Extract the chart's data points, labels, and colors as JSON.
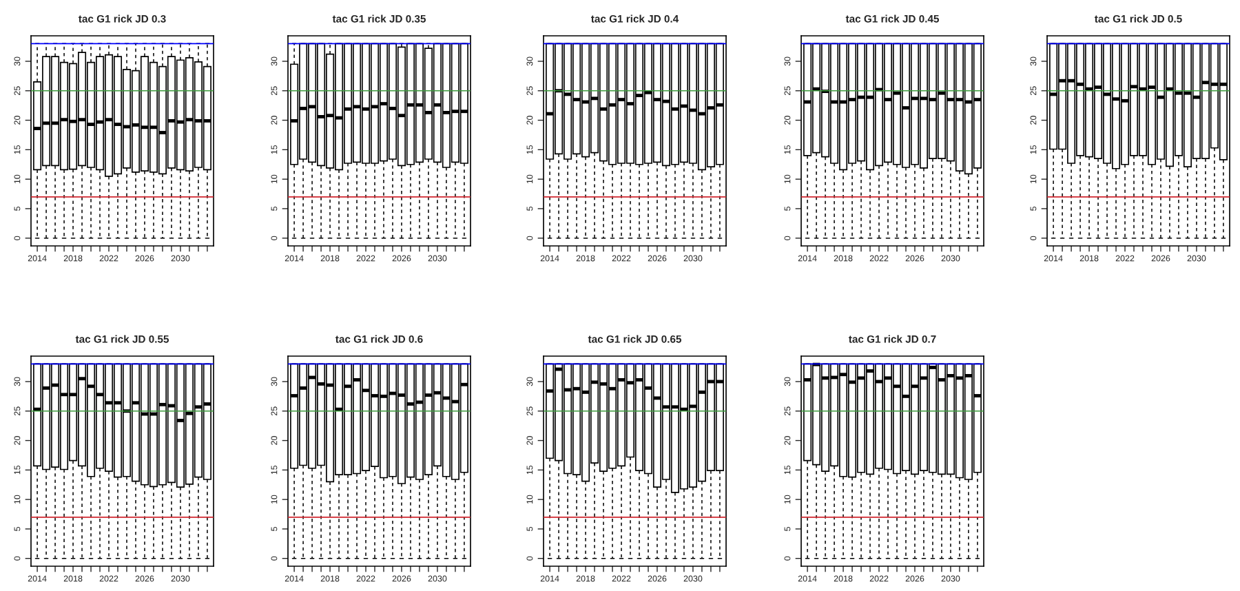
{
  "chart_data": [
    {
      "type": "box",
      "title": "tac G1 rick JD 0.3",
      "categories": [
        "2014",
        null,
        null,
        null,
        "2018",
        null,
        null,
        null,
        "2022",
        null,
        null,
        null,
        "2026",
        null,
        null,
        null,
        "2030",
        null,
        null,
        null
      ],
      "ylim": [
        -1.32,
        34.32
      ],
      "yticks": [
        0,
        5,
        10,
        15,
        20,
        25,
        30
      ],
      "grid": false,
      "ref_lines": [
        {
          "axis": "y",
          "value": 33,
          "color": "#0000ff"
        },
        {
          "axis": "y",
          "value": 25,
          "color": "#3c9a3c"
        },
        {
          "axis": "y",
          "value": 7,
          "color": "#d0262e"
        }
      ],
      "boxes": [
        {
          "low": 0,
          "q1": 11.6,
          "median": 18.6,
          "q3": 26.5,
          "high": 33
        },
        {
          "low": 0,
          "q1": 12.3,
          "median": 19.5,
          "q3": 30.8,
          "high": 33
        },
        {
          "low": 0,
          "q1": 12.3,
          "median": 19.5,
          "q3": 30.8,
          "high": 33
        },
        {
          "low": 0,
          "q1": 11.6,
          "median": 20.1,
          "q3": 29.8,
          "high": 33
        },
        {
          "low": 0,
          "q1": 11.7,
          "median": 19.8,
          "q3": 29.6,
          "high": 33
        },
        {
          "low": 0,
          "q1": 12.3,
          "median": 20.1,
          "q3": 31.5,
          "high": 33
        },
        {
          "low": 0,
          "q1": 12.0,
          "median": 19.3,
          "q3": 29.8,
          "high": 33
        },
        {
          "low": 0,
          "q1": 11.6,
          "median": 19.7,
          "q3": 30.8,
          "high": 33
        },
        {
          "low": 0,
          "q1": 10.5,
          "median": 20.1,
          "q3": 31.1,
          "high": 33
        },
        {
          "low": 0,
          "q1": 10.9,
          "median": 19.3,
          "q3": 30.8,
          "high": 33
        },
        {
          "low": 0,
          "q1": 11.9,
          "median": 18.9,
          "q3": 28.6,
          "high": 33
        },
        {
          "low": 0,
          "q1": 11.2,
          "median": 19.2,
          "q3": 28.4,
          "high": 33
        },
        {
          "low": 0,
          "q1": 11.4,
          "median": 18.8,
          "q3": 30.8,
          "high": 33
        },
        {
          "low": 0,
          "q1": 11.2,
          "median": 18.8,
          "q3": 29.8,
          "high": 33
        },
        {
          "low": 0,
          "q1": 10.9,
          "median": 17.9,
          "q3": 29.1,
          "high": 33
        },
        {
          "low": 0,
          "q1": 11.9,
          "median": 19.9,
          "q3": 30.8,
          "high": 33
        },
        {
          "low": 0,
          "q1": 11.6,
          "median": 19.7,
          "q3": 30.2,
          "high": 33
        },
        {
          "low": 0,
          "q1": 11.4,
          "median": 20.1,
          "q3": 30.6,
          "high": 33
        },
        {
          "low": 0,
          "q1": 12.0,
          "median": 19.9,
          "q3": 29.9,
          "high": 33
        },
        {
          "low": 0,
          "q1": 11.6,
          "median": 19.9,
          "q3": 29.1,
          "high": 33
        }
      ]
    },
    {
      "type": "box",
      "title": "tac G1 rick JD 0.35",
      "categories": [
        "2014",
        null,
        null,
        null,
        "2018",
        null,
        null,
        null,
        "2022",
        null,
        null,
        null,
        "2026",
        null,
        null,
        null,
        "2030",
        null,
        null,
        null
      ],
      "ylim": [
        -1.32,
        34.32
      ],
      "yticks": [
        0,
        5,
        10,
        15,
        20,
        25,
        30
      ],
      "grid": false,
      "ref_lines": [
        {
          "axis": "y",
          "value": 33,
          "color": "#0000ff"
        },
        {
          "axis": "y",
          "value": 25,
          "color": "#3c9a3c"
        },
        {
          "axis": "y",
          "value": 7,
          "color": "#d0262e"
        }
      ],
      "boxes": [
        {
          "low": 0,
          "q1": 12.5,
          "median": 19.9,
          "q3": 29.5,
          "high": 33
        },
        {
          "low": 0,
          "q1": 13.4,
          "median": 22.0,
          "q3": 33,
          "high": 33
        },
        {
          "low": 0,
          "q1": 12.9,
          "median": 22.3,
          "q3": 33,
          "high": 33
        },
        {
          "low": 0,
          "q1": 12.3,
          "median": 20.6,
          "q3": 33,
          "high": 33
        },
        {
          "low": 0,
          "q1": 11.9,
          "median": 20.8,
          "q3": 31.2,
          "high": 33
        },
        {
          "low": 0,
          "q1": 11.6,
          "median": 20.4,
          "q3": 33,
          "high": 33
        },
        {
          "low": 0,
          "q1": 12.7,
          "median": 21.9,
          "q3": 33,
          "high": 33
        },
        {
          "low": 0,
          "q1": 12.9,
          "median": 22.3,
          "q3": 33,
          "high": 33
        },
        {
          "low": 0,
          "q1": 12.7,
          "median": 21.9,
          "q3": 33,
          "high": 33
        },
        {
          "low": 0,
          "q1": 12.7,
          "median": 22.3,
          "q3": 33,
          "high": 33
        },
        {
          "low": 0,
          "q1": 13.1,
          "median": 22.8,
          "q3": 33,
          "high": 33
        },
        {
          "low": 0,
          "q1": 13.4,
          "median": 22.0,
          "q3": 33,
          "high": 33
        },
        {
          "low": 0,
          "q1": 12.3,
          "median": 20.8,
          "q3": 32.4,
          "high": 33
        },
        {
          "low": 0,
          "q1": 12.5,
          "median": 22.6,
          "q3": 33,
          "high": 33
        },
        {
          "low": 0,
          "q1": 12.9,
          "median": 22.6,
          "q3": 33,
          "high": 33
        },
        {
          "low": 0,
          "q1": 13.4,
          "median": 21.3,
          "q3": 32.2,
          "high": 33
        },
        {
          "low": 0,
          "q1": 12.9,
          "median": 22.6,
          "q3": 33,
          "high": 33
        },
        {
          "low": 0,
          "q1": 12.0,
          "median": 21.3,
          "q3": 33,
          "high": 33
        },
        {
          "low": 0,
          "q1": 12.9,
          "median": 21.5,
          "q3": 33,
          "high": 33
        },
        {
          "low": 0,
          "q1": 12.7,
          "median": 21.5,
          "q3": 33,
          "high": 33
        }
      ]
    },
    {
      "type": "box",
      "title": "tac G1 rick JD 0.4",
      "categories": [
        "2014",
        null,
        null,
        null,
        "2018",
        null,
        null,
        null,
        "2022",
        null,
        null,
        null,
        "2026",
        null,
        null,
        null,
        "2030",
        null,
        null,
        null
      ],
      "ylim": [
        -1.32,
        34.32
      ],
      "yticks": [
        0,
        5,
        10,
        15,
        20,
        25,
        30
      ],
      "grid": false,
      "ref_lines": [
        {
          "axis": "y",
          "value": 33,
          "color": "#0000ff"
        },
        {
          "axis": "y",
          "value": 25,
          "color": "#3c9a3c"
        },
        {
          "axis": "y",
          "value": 7,
          "color": "#d0262e"
        }
      ],
      "boxes": [
        {
          "low": 0,
          "q1": 13.4,
          "median": 21.1,
          "q3": 33,
          "high": 33
        },
        {
          "low": 0,
          "q1": 14.3,
          "median": 25.0,
          "q3": 33,
          "high": 33
        },
        {
          "low": 0,
          "q1": 13.4,
          "median": 24.4,
          "q3": 33,
          "high": 33
        },
        {
          "low": 0,
          "q1": 14.3,
          "median": 23.5,
          "q3": 33,
          "high": 33
        },
        {
          "low": 0,
          "q1": 13.8,
          "median": 23.1,
          "q3": 33,
          "high": 33
        },
        {
          "low": 0,
          "q1": 14.5,
          "median": 23.7,
          "q3": 33,
          "high": 33
        },
        {
          "low": 0,
          "q1": 13.1,
          "median": 21.9,
          "q3": 33,
          "high": 33
        },
        {
          "low": 0,
          "q1": 12.5,
          "median": 22.6,
          "q3": 33,
          "high": 33
        },
        {
          "low": 0,
          "q1": 12.7,
          "median": 23.5,
          "q3": 33,
          "high": 33
        },
        {
          "low": 0,
          "q1": 12.7,
          "median": 22.8,
          "q3": 33,
          "high": 33
        },
        {
          "low": 0,
          "q1": 12.5,
          "median": 24.2,
          "q3": 33,
          "high": 33
        },
        {
          "low": 0,
          "q1": 12.7,
          "median": 24.7,
          "q3": 33,
          "high": 33
        },
        {
          "low": 0,
          "q1": 12.9,
          "median": 23.5,
          "q3": 33,
          "high": 33
        },
        {
          "low": 0,
          "q1": 12.3,
          "median": 23.2,
          "q3": 33,
          "high": 33
        },
        {
          "low": 0,
          "q1": 12.5,
          "median": 21.9,
          "q3": 33,
          "high": 33
        },
        {
          "low": 0,
          "q1": 12.9,
          "median": 22.4,
          "q3": 33,
          "high": 33
        },
        {
          "low": 0,
          "q1": 12.7,
          "median": 21.7,
          "q3": 33,
          "high": 33
        },
        {
          "low": 0,
          "q1": 11.6,
          "median": 21.1,
          "q3": 33,
          "high": 33
        },
        {
          "low": 0,
          "q1": 12.1,
          "median": 22.1,
          "q3": 33,
          "high": 33
        },
        {
          "low": 0,
          "q1": 12.5,
          "median": 22.6,
          "q3": 33,
          "high": 33
        }
      ]
    },
    {
      "type": "box",
      "title": "tac G1 rick JD 0.45",
      "categories": [
        "2014",
        null,
        null,
        null,
        "2018",
        null,
        null,
        null,
        "2022",
        null,
        null,
        null,
        "2026",
        null,
        null,
        null,
        "2030",
        null,
        null,
        null
      ],
      "ylim": [
        -1.32,
        34.32
      ],
      "yticks": [
        0,
        5,
        10,
        15,
        20,
        25,
        30
      ],
      "grid": false,
      "ref_lines": [
        {
          "axis": "y",
          "value": 33,
          "color": "#0000ff"
        },
        {
          "axis": "y",
          "value": 25,
          "color": "#3c9a3c"
        },
        {
          "axis": "y",
          "value": 7,
          "color": "#d0262e"
        }
      ],
      "boxes": [
        {
          "low": 0,
          "q1": 14.0,
          "median": 23.1,
          "q3": 33,
          "high": 33
        },
        {
          "low": 0,
          "q1": 14.5,
          "median": 25.3,
          "q3": 33,
          "high": 33
        },
        {
          "low": 0,
          "q1": 13.8,
          "median": 24.9,
          "q3": 33,
          "high": 33
        },
        {
          "low": 0,
          "q1": 12.7,
          "median": 23.1,
          "q3": 33,
          "high": 33
        },
        {
          "low": 0,
          "q1": 11.6,
          "median": 23.1,
          "q3": 33,
          "high": 33
        },
        {
          "low": 0,
          "q1": 12.7,
          "median": 23.5,
          "q3": 33,
          "high": 33
        },
        {
          "low": 0,
          "q1": 13.1,
          "median": 23.9,
          "q3": 33,
          "high": 33
        },
        {
          "low": 0,
          "q1": 11.6,
          "median": 23.9,
          "q3": 33,
          "high": 33
        },
        {
          "low": 0,
          "q1": 12.3,
          "median": 25.2,
          "q3": 33,
          "high": 33
        },
        {
          "low": 0,
          "q1": 12.9,
          "median": 23.5,
          "q3": 33,
          "high": 33
        },
        {
          "low": 0,
          "q1": 12.5,
          "median": 24.6,
          "q3": 33,
          "high": 33
        },
        {
          "low": 0,
          "q1": 12.0,
          "median": 22.1,
          "q3": 33,
          "high": 33
        },
        {
          "low": 0,
          "q1": 12.5,
          "median": 23.7,
          "q3": 33,
          "high": 33
        },
        {
          "low": 0,
          "q1": 11.9,
          "median": 23.7,
          "q3": 33,
          "high": 33
        },
        {
          "low": 0,
          "q1": 13.5,
          "median": 23.5,
          "q3": 33,
          "high": 33
        },
        {
          "low": 0,
          "q1": 13.5,
          "median": 24.6,
          "q3": 33,
          "high": 33
        },
        {
          "low": 0,
          "q1": 13.1,
          "median": 23.5,
          "q3": 33,
          "high": 33
        },
        {
          "low": 0,
          "q1": 11.4,
          "median": 23.5,
          "q3": 33,
          "high": 33
        },
        {
          "low": 0,
          "q1": 10.9,
          "median": 23.1,
          "q3": 33,
          "high": 33
        },
        {
          "low": 0,
          "q1": 11.9,
          "median": 23.5,
          "q3": 33,
          "high": 33
        }
      ]
    },
    {
      "type": "box",
      "title": "tac G1 rick JD 0.5",
      "categories": [
        "2014",
        null,
        null,
        null,
        "2018",
        null,
        null,
        null,
        "2022",
        null,
        null,
        null,
        "2026",
        null,
        null,
        null,
        "2030",
        null,
        null,
        null
      ],
      "ylim": [
        -1.32,
        34.32
      ],
      "yticks": [
        0,
        5,
        10,
        15,
        20,
        25,
        30
      ],
      "grid": false,
      "ref_lines": [
        {
          "axis": "y",
          "value": 33,
          "color": "#0000ff"
        },
        {
          "axis": "y",
          "value": 25,
          "color": "#3c9a3c"
        },
        {
          "axis": "y",
          "value": 7,
          "color": "#d0262e"
        }
      ],
      "boxes": [
        {
          "low": 0,
          "q1": 15.1,
          "median": 24.4,
          "q3": 33,
          "high": 33
        },
        {
          "low": 0,
          "q1": 15.1,
          "median": 26.7,
          "q3": 33,
          "high": 33
        },
        {
          "low": 0,
          "q1": 12.7,
          "median": 26.7,
          "q3": 33,
          "high": 33
        },
        {
          "low": 0,
          "q1": 14.0,
          "median": 26.1,
          "q3": 33,
          "high": 33
        },
        {
          "low": 0,
          "q1": 13.8,
          "median": 25.3,
          "q3": 33,
          "high": 33
        },
        {
          "low": 0,
          "q1": 13.5,
          "median": 25.6,
          "q3": 33,
          "high": 33
        },
        {
          "low": 0,
          "q1": 12.7,
          "median": 24.4,
          "q3": 33,
          "high": 33
        },
        {
          "low": 0,
          "q1": 11.8,
          "median": 23.6,
          "q3": 33,
          "high": 33
        },
        {
          "low": 0,
          "q1": 12.5,
          "median": 23.3,
          "q3": 33,
          "high": 33
        },
        {
          "low": 0,
          "q1": 14.0,
          "median": 25.7,
          "q3": 33,
          "high": 33
        },
        {
          "low": 0,
          "q1": 14.0,
          "median": 25.3,
          "q3": 33,
          "high": 33
        },
        {
          "low": 0,
          "q1": 12.5,
          "median": 25.6,
          "q3": 33,
          "high": 33
        },
        {
          "low": 0,
          "q1": 13.4,
          "median": 23.9,
          "q3": 33,
          "high": 33
        },
        {
          "low": 0,
          "q1": 12.2,
          "median": 25.3,
          "q3": 33,
          "high": 33
        },
        {
          "low": 0,
          "q1": 14.0,
          "median": 24.6,
          "q3": 33,
          "high": 33
        },
        {
          "low": 0,
          "q1": 12.1,
          "median": 24.6,
          "q3": 33,
          "high": 33
        },
        {
          "low": 0,
          "q1": 13.5,
          "median": 23.9,
          "q3": 33,
          "high": 33
        },
        {
          "low": 0,
          "q1": 13.5,
          "median": 26.4,
          "q3": 33,
          "high": 33
        },
        {
          "low": 0,
          "q1": 15.3,
          "median": 26.1,
          "q3": 33,
          "high": 33
        },
        {
          "low": 0,
          "q1": 13.3,
          "median": 26.1,
          "q3": 33,
          "high": 33
        }
      ]
    },
    {
      "type": "box",
      "title": "tac G1 rick JD 0.55",
      "categories": [
        "2014",
        null,
        null,
        null,
        "2018",
        null,
        null,
        null,
        "2022",
        null,
        null,
        null,
        "2026",
        null,
        null,
        null,
        "2030",
        null,
        null,
        null
      ],
      "ylim": [
        -1.32,
        34.32
      ],
      "yticks": [
        0,
        5,
        10,
        15,
        20,
        25,
        30
      ],
      "grid": false,
      "ref_lines": [
        {
          "axis": "y",
          "value": 33,
          "color": "#0000ff"
        },
        {
          "axis": "y",
          "value": 25,
          "color": "#3c9a3c"
        },
        {
          "axis": "y",
          "value": 7,
          "color": "#d0262e"
        }
      ],
      "boxes": [
        {
          "low": 0,
          "q1": 15.7,
          "median": 25.3,
          "q3": 33,
          "high": 33
        },
        {
          "low": 0,
          "q1": 15.1,
          "median": 28.9,
          "q3": 33,
          "high": 33
        },
        {
          "low": 0,
          "q1": 15.5,
          "median": 29.4,
          "q3": 33,
          "high": 33
        },
        {
          "low": 0,
          "q1": 15.1,
          "median": 27.8,
          "q3": 33,
          "high": 33
        },
        {
          "low": 0,
          "q1": 16.6,
          "median": 27.8,
          "q3": 33,
          "high": 33
        },
        {
          "low": 0,
          "q1": 15.7,
          "median": 30.5,
          "q3": 33,
          "high": 33
        },
        {
          "low": 0,
          "q1": 13.9,
          "median": 29.2,
          "q3": 33,
          "high": 33
        },
        {
          "low": 0,
          "q1": 15.3,
          "median": 27.8,
          "q3": 33,
          "high": 33
        },
        {
          "low": 0,
          "q1": 14.8,
          "median": 26.4,
          "q3": 33,
          "high": 33
        },
        {
          "low": 0,
          "q1": 13.8,
          "median": 26.4,
          "q3": 33,
          "high": 33
        },
        {
          "low": 0,
          "q1": 13.9,
          "median": 25.0,
          "q3": 33,
          "high": 33
        },
        {
          "low": 0,
          "q1": 13.1,
          "median": 26.4,
          "q3": 33,
          "high": 33
        },
        {
          "low": 0,
          "q1": 12.5,
          "median": 24.5,
          "q3": 33,
          "high": 33
        },
        {
          "low": 0,
          "q1": 12.2,
          "median": 24.5,
          "q3": 33,
          "high": 33
        },
        {
          "low": 0,
          "q1": 12.5,
          "median": 26.1,
          "q3": 33,
          "high": 33
        },
        {
          "low": 0,
          "q1": 12.9,
          "median": 25.9,
          "q3": 33,
          "high": 33
        },
        {
          "low": 0,
          "q1": 12.1,
          "median": 23.4,
          "q3": 33,
          "high": 33
        },
        {
          "low": 0,
          "q1": 12.6,
          "median": 24.6,
          "q3": 33,
          "high": 33
        },
        {
          "low": 0,
          "q1": 13.8,
          "median": 25.7,
          "q3": 33,
          "high": 33
        },
        {
          "low": 0,
          "q1": 13.4,
          "median": 26.2,
          "q3": 33,
          "high": 33
        }
      ]
    },
    {
      "type": "box",
      "title": "tac G1 rick JD 0.6",
      "categories": [
        "2014",
        null,
        null,
        null,
        "2018",
        null,
        null,
        null,
        "2022",
        null,
        null,
        null,
        "2026",
        null,
        null,
        null,
        "2030",
        null,
        null,
        null
      ],
      "ylim": [
        -1.32,
        34.32
      ],
      "yticks": [
        0,
        5,
        10,
        15,
        20,
        25,
        30
      ],
      "grid": false,
      "ref_lines": [
        {
          "axis": "y",
          "value": 33,
          "color": "#0000ff"
        },
        {
          "axis": "y",
          "value": 25,
          "color": "#3c9a3c"
        },
        {
          "axis": "y",
          "value": 7,
          "color": "#d0262e"
        }
      ],
      "boxes": [
        {
          "low": 0,
          "q1": 15.3,
          "median": 27.6,
          "q3": 33,
          "high": 33
        },
        {
          "low": 0,
          "q1": 15.8,
          "median": 28.9,
          "q3": 33,
          "high": 33
        },
        {
          "low": 0,
          "q1": 15.3,
          "median": 30.7,
          "q3": 33,
          "high": 33
        },
        {
          "low": 0,
          "q1": 15.8,
          "median": 29.6,
          "q3": 33,
          "high": 33
        },
        {
          "low": 0,
          "q1": 13.0,
          "median": 29.4,
          "q3": 33,
          "high": 33
        },
        {
          "low": 0,
          "q1": 14.2,
          "median": 25.3,
          "q3": 33,
          "high": 33
        },
        {
          "low": 0,
          "q1": 14.2,
          "median": 29.2,
          "q3": 33,
          "high": 33
        },
        {
          "low": 0,
          "q1": 14.4,
          "median": 30.3,
          "q3": 33,
          "high": 33
        },
        {
          "low": 0,
          "q1": 14.9,
          "median": 28.5,
          "q3": 33,
          "high": 33
        },
        {
          "low": 0,
          "q1": 15.6,
          "median": 27.6,
          "q3": 33,
          "high": 33
        },
        {
          "low": 0,
          "q1": 13.7,
          "median": 27.5,
          "q3": 33,
          "high": 33
        },
        {
          "low": 0,
          "q1": 13.9,
          "median": 28.0,
          "q3": 33,
          "high": 33
        },
        {
          "low": 0,
          "q1": 12.7,
          "median": 27.7,
          "q3": 33,
          "high": 33
        },
        {
          "low": 0,
          "q1": 13.8,
          "median": 26.2,
          "q3": 33,
          "high": 33
        },
        {
          "low": 0,
          "q1": 13.4,
          "median": 26.5,
          "q3": 33,
          "high": 33
        },
        {
          "low": 0,
          "q1": 14.2,
          "median": 27.7,
          "q3": 33,
          "high": 33
        },
        {
          "low": 0,
          "q1": 15.7,
          "median": 28.1,
          "q3": 33,
          "high": 33
        },
        {
          "low": 0,
          "q1": 13.9,
          "median": 27.2,
          "q3": 33,
          "high": 33
        },
        {
          "low": 0,
          "q1": 13.4,
          "median": 26.6,
          "q3": 33,
          "high": 33
        },
        {
          "low": 0,
          "q1": 14.6,
          "median": 29.5,
          "q3": 33,
          "high": 33
        }
      ]
    },
    {
      "type": "box",
      "title": "tac G1 rick JD 0.65",
      "categories": [
        "2014",
        null,
        null,
        null,
        "2018",
        null,
        null,
        null,
        "2022",
        null,
        null,
        null,
        "2026",
        null,
        null,
        null,
        "2030",
        null,
        null,
        null
      ],
      "ylim": [
        -1.32,
        34.32
      ],
      "yticks": [
        0,
        5,
        10,
        15,
        20,
        25,
        30
      ],
      "grid": false,
      "ref_lines": [
        {
          "axis": "y",
          "value": 33,
          "color": "#0000ff"
        },
        {
          "axis": "y",
          "value": 25,
          "color": "#3c9a3c"
        },
        {
          "axis": "y",
          "value": 7,
          "color": "#d0262e"
        }
      ],
      "boxes": [
        {
          "low": 0,
          "q1": 17.0,
          "median": 28.4,
          "q3": 33,
          "high": 33
        },
        {
          "low": 0,
          "q1": 16.6,
          "median": 32.1,
          "q3": 33,
          "high": 33
        },
        {
          "low": 0,
          "q1": 14.4,
          "median": 28.6,
          "q3": 33,
          "high": 33
        },
        {
          "low": 0,
          "q1": 14.2,
          "median": 28.8,
          "q3": 33,
          "high": 33
        },
        {
          "low": 0,
          "q1": 13.1,
          "median": 28.2,
          "q3": 33,
          "high": 33
        },
        {
          "low": 0,
          "q1": 16.2,
          "median": 29.9,
          "q3": 33,
          "high": 33
        },
        {
          "low": 0,
          "q1": 14.8,
          "median": 29.6,
          "q3": 33,
          "high": 33
        },
        {
          "low": 0,
          "q1": 15.3,
          "median": 28.8,
          "q3": 33,
          "high": 33
        },
        {
          "low": 0,
          "q1": 15.7,
          "median": 30.3,
          "q3": 33,
          "high": 33
        },
        {
          "low": 0,
          "q1": 17.2,
          "median": 29.8,
          "q3": 33,
          "high": 33
        },
        {
          "low": 0,
          "q1": 14.9,
          "median": 30.3,
          "q3": 33,
          "high": 33
        },
        {
          "low": 0,
          "q1": 14.4,
          "median": 28.9,
          "q3": 33,
          "high": 33
        },
        {
          "low": 0,
          "q1": 12.1,
          "median": 27.2,
          "q3": 33,
          "high": 33
        },
        {
          "low": 0,
          "q1": 13.4,
          "median": 25.7,
          "q3": 33,
          "high": 33
        },
        {
          "low": 0,
          "q1": 11.2,
          "median": 25.7,
          "q3": 33,
          "high": 33
        },
        {
          "low": 0,
          "q1": 11.8,
          "median": 25.3,
          "q3": 33,
          "high": 33
        },
        {
          "low": 0,
          "q1": 12.1,
          "median": 25.8,
          "q3": 33,
          "high": 33
        },
        {
          "low": 0,
          "q1": 13.1,
          "median": 28.2,
          "q3": 33,
          "high": 33
        },
        {
          "low": 0,
          "q1": 14.9,
          "median": 30.0,
          "q3": 33,
          "high": 33
        },
        {
          "low": 0,
          "q1": 14.9,
          "median": 30.0,
          "q3": 33,
          "high": 33
        }
      ]
    },
    {
      "type": "box",
      "title": "tac G1 rick JD 0.7",
      "categories": [
        "2014",
        null,
        null,
        null,
        "2018",
        null,
        null,
        null,
        "2022",
        null,
        null,
        null,
        "2026",
        null,
        null,
        null,
        "2030",
        null,
        null,
        null
      ],
      "ylim": [
        -1.32,
        34.32
      ],
      "yticks": [
        0,
        5,
        10,
        15,
        20,
        25,
        30
      ],
      "grid": false,
      "ref_lines": [
        {
          "axis": "y",
          "value": 33,
          "color": "#0000ff"
        },
        {
          "axis": "y",
          "value": 25,
          "color": "#3c9a3c"
        },
        {
          "axis": "y",
          "value": 7,
          "color": "#d0262e"
        }
      ],
      "boxes": [
        {
          "low": 0,
          "q1": 16.6,
          "median": 30.3,
          "q3": 33,
          "high": 33
        },
        {
          "low": 0,
          "q1": 15.9,
          "median": 32.9,
          "q3": 33,
          "high": 33
        },
        {
          "low": 0,
          "q1": 14.8,
          "median": 30.6,
          "q3": 33,
          "high": 33
        },
        {
          "low": 0,
          "q1": 15.7,
          "median": 30.7,
          "q3": 33,
          "high": 33
        },
        {
          "low": 0,
          "q1": 13.9,
          "median": 31.2,
          "q3": 33,
          "high": 33
        },
        {
          "low": 0,
          "q1": 13.8,
          "median": 29.9,
          "q3": 33,
          "high": 33
        },
        {
          "low": 0,
          "q1": 14.6,
          "median": 30.6,
          "q3": 33,
          "high": 33
        },
        {
          "low": 0,
          "q1": 14.3,
          "median": 31.8,
          "q3": 33,
          "high": 33
        },
        {
          "low": 0,
          "q1": 15.3,
          "median": 30.0,
          "q3": 33,
          "high": 33
        },
        {
          "low": 0,
          "q1": 15.1,
          "median": 30.6,
          "q3": 33,
          "high": 33
        },
        {
          "low": 0,
          "q1": 14.4,
          "median": 29.2,
          "q3": 33,
          "high": 33
        },
        {
          "low": 0,
          "q1": 14.9,
          "median": 27.5,
          "q3": 33,
          "high": 33
        },
        {
          "low": 0,
          "q1": 14.3,
          "median": 29.2,
          "q3": 33,
          "high": 33
        },
        {
          "low": 0,
          "q1": 14.9,
          "median": 30.6,
          "q3": 33,
          "high": 33
        },
        {
          "low": 0,
          "q1": 14.6,
          "median": 32.4,
          "q3": 33,
          "high": 33
        },
        {
          "low": 0,
          "q1": 14.3,
          "median": 30.3,
          "q3": 33,
          "high": 33
        },
        {
          "low": 0,
          "q1": 14.3,
          "median": 31.0,
          "q3": 33,
          "high": 33
        },
        {
          "low": 0,
          "q1": 13.7,
          "median": 30.6,
          "q3": 33,
          "high": 33
        },
        {
          "low": 0,
          "q1": 13.4,
          "median": 31.0,
          "q3": 33,
          "high": 33
        },
        {
          "low": 0,
          "q1": 14.6,
          "median": 27.6,
          "q3": 33,
          "high": 33
        }
      ]
    }
  ]
}
